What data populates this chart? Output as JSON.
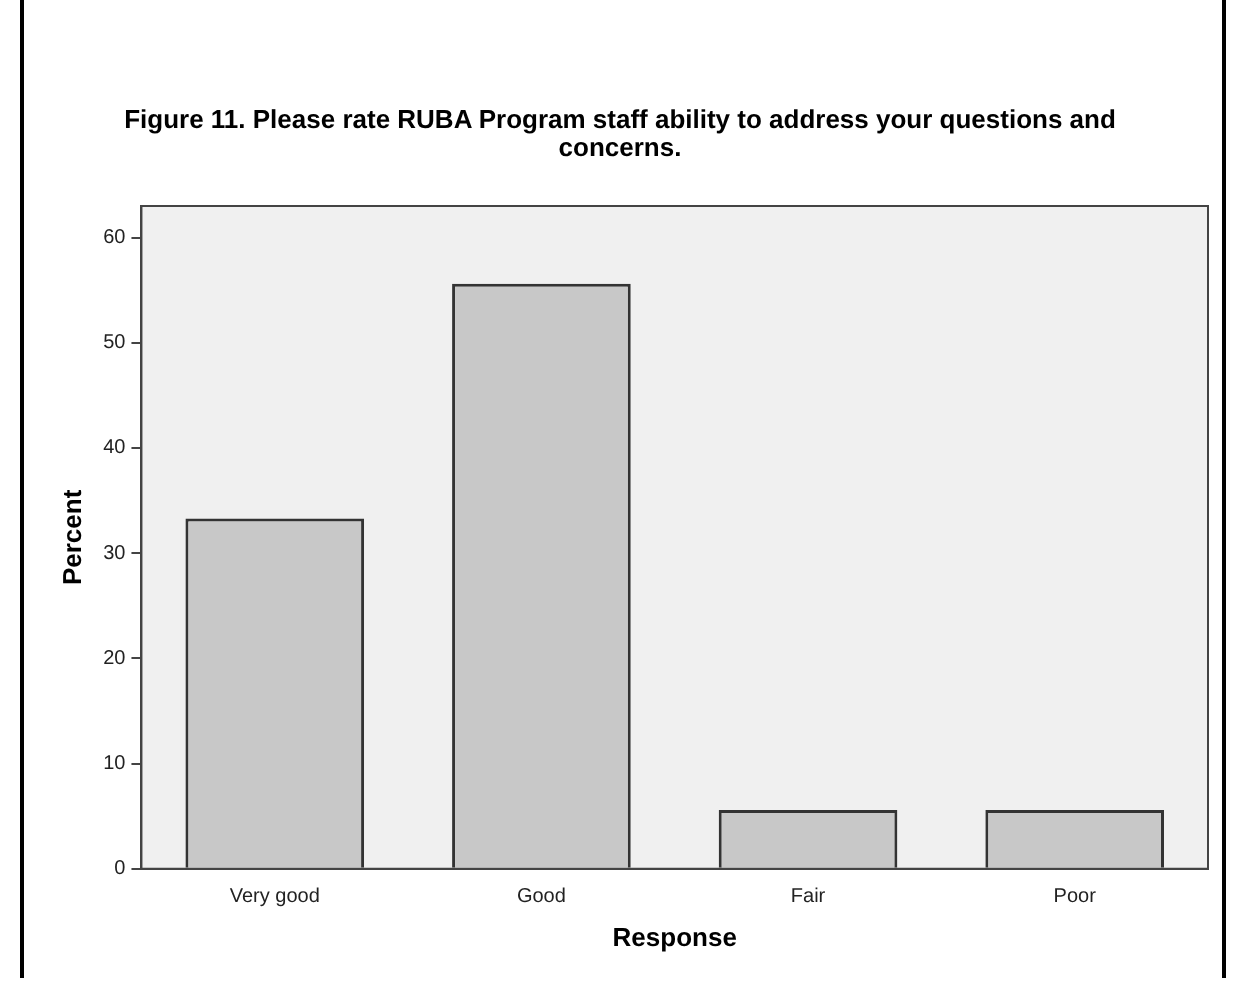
{
  "chart_data": {
    "type": "bar",
    "title": "Figure 11.  Please rate RUBA Program staff ability to address your questions and concerns.",
    "xlabel": "Response",
    "ylabel": "Percent",
    "categories": [
      "Very good",
      "Good",
      "Fair",
      "Poor"
    ],
    "values": [
      33.3,
      55.6,
      5.6,
      5.6
    ],
    "color": "#c8c8c8",
    "ylim": [
      0,
      63
    ],
    "yticks": [
      0,
      10,
      20,
      30,
      40,
      50,
      60
    ],
    "grid": false,
    "legend": false
  }
}
